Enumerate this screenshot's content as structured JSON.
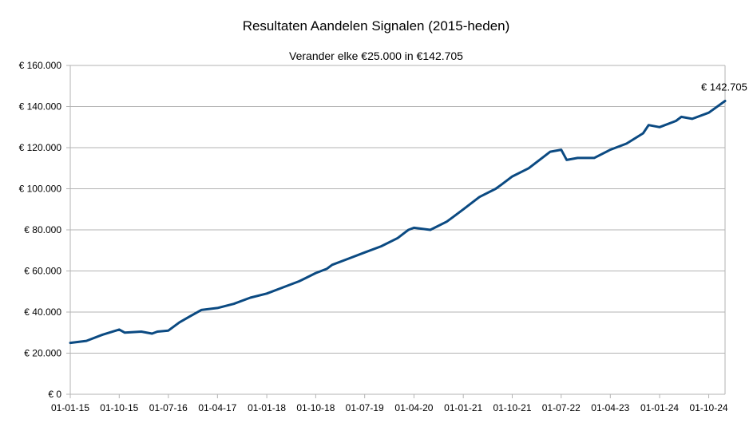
{
  "chart_data": {
    "type": "line",
    "title": "Resultaten Aandelen Signalen (2015-heden)",
    "subtitle": "Verander elke €25.000 in €142.705",
    "xlabel": "",
    "ylabel": "",
    "ylim": [
      0,
      160000
    ],
    "x_range": [
      "2015-01-01",
      "2024-12-31"
    ],
    "y_ticks": [
      0,
      20000,
      40000,
      60000,
      80000,
      100000,
      120000,
      140000,
      160000
    ],
    "y_tick_labels": [
      "€ 0",
      "€ 20.000",
      "€ 40.000",
      "€ 60.000",
      "€ 80.000",
      "€ 100.000",
      "€ 120.000",
      "€ 140.000",
      "€ 160.000"
    ],
    "x_ticks": [
      "2015-01-01",
      "2015-10-01",
      "2016-07-01",
      "2017-04-01",
      "2018-01-01",
      "2018-10-01",
      "2019-07-01",
      "2020-04-01",
      "2021-01-01",
      "2021-10-01",
      "2022-07-01",
      "2023-04-01",
      "2024-01-01",
      "2024-10-01"
    ],
    "x_tick_labels": [
      "01-01-15",
      "01-10-15",
      "01-07-16",
      "01-04-17",
      "01-01-18",
      "01-10-18",
      "01-07-19",
      "01-04-20",
      "01-01-21",
      "01-10-21",
      "01-07-22",
      "01-04-23",
      "01-01-24",
      "01-10-24"
    ],
    "grid": true,
    "legend": "none",
    "series": [
      {
        "color": "#0b4a82",
        "x": [
          "2015-01-01",
          "2015-04-01",
          "2015-07-01",
          "2015-10-01",
          "2015-11-01",
          "2016-02-01",
          "2016-04-01",
          "2016-05-01",
          "2016-07-01",
          "2016-09-01",
          "2016-11-01",
          "2017-01-01",
          "2017-04-01",
          "2017-07-01",
          "2017-10-01",
          "2018-01-01",
          "2018-04-01",
          "2018-07-01",
          "2018-10-01",
          "2018-12-01",
          "2019-01-01",
          "2019-04-01",
          "2019-07-01",
          "2019-10-01",
          "2020-01-01",
          "2020-03-01",
          "2020-04-01",
          "2020-07-01",
          "2020-10-01",
          "2020-11-01",
          "2021-01-01",
          "2021-04-01",
          "2021-07-01",
          "2021-08-01",
          "2021-10-01",
          "2022-01-01",
          "2022-04-01",
          "2022-05-01",
          "2022-07-01",
          "2022-08-01",
          "2022-10-01",
          "2023-01-01",
          "2023-04-01",
          "2023-07-01",
          "2023-10-01",
          "2023-11-01",
          "2024-01-01",
          "2024-04-01",
          "2024-05-01",
          "2024-07-01",
          "2024-10-01",
          "2024-12-31"
        ],
        "values": [
          25000,
          26000,
          29000,
          31500,
          30000,
          30500,
          29500,
          30500,
          31000,
          35000,
          38000,
          41000,
          42000,
          44000,
          47000,
          49000,
          52000,
          55000,
          59000,
          61000,
          63000,
          66000,
          69000,
          72000,
          76000,
          80000,
          81000,
          80000,
          84000,
          86000,
          90000,
          96000,
          100000,
          102000,
          106000,
          110000,
          116000,
          118000,
          119000,
          114000,
          115000,
          115000,
          119000,
          122000,
          127000,
          131000,
          130000,
          133000,
          135000,
          134000,
          137000,
          142705
        ]
      }
    ],
    "annotations": [
      {
        "text": "€ 142.705",
        "x": "2024-12-31",
        "y": 142705
      }
    ]
  }
}
